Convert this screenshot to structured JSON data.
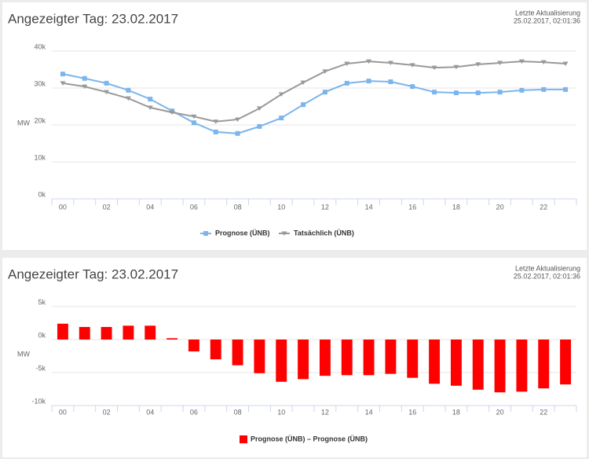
{
  "chart_data": [
    {
      "type": "line",
      "title": "Angezeigter Tag: 23.02.2017",
      "update_label": "Letzte Aktualisierung",
      "update_time": "25.02.2017, 02:01:36",
      "y_label": "MW",
      "categories": [
        "00",
        null,
        "02",
        null,
        "04",
        null,
        "06",
        null,
        "08",
        null,
        "10",
        null,
        "12",
        null,
        "14",
        null,
        "16",
        null,
        "18",
        null,
        "20",
        null,
        "22",
        null
      ],
      "series": [
        {
          "name": "Prognose (ÜNB)",
          "color": "#7cb5ec",
          "marker": "square",
          "values": [
            33800,
            32600,
            31300,
            29400,
            27000,
            23800,
            20600,
            18100,
            17700,
            19600,
            21900,
            25500,
            28900,
            31300,
            31900,
            31700,
            30400,
            28900,
            28700,
            28700,
            28900,
            29400,
            29600,
            29600
          ]
        },
        {
          "name": "Tatsächlich (ÜNB)",
          "color": "#999999",
          "marker": "triangle-down",
          "values": [
            31300,
            30400,
            28900,
            27200,
            24700,
            23400,
            22300,
            20900,
            21500,
            24500,
            28300,
            31500,
            34500,
            36600,
            37200,
            36800,
            36200,
            35500,
            35700,
            36400,
            36800,
            37200,
            37000,
            36600
          ]
        }
      ],
      "ylim": [
        0,
        40000
      ],
      "yticks": [
        {
          "value": 0,
          "label": "0k"
        },
        {
          "value": 10000,
          "label": "10k"
        },
        {
          "value": 20000,
          "label": "20k"
        },
        {
          "value": 30000,
          "label": "30k"
        },
        {
          "value": 40000,
          "label": "40k"
        }
      ],
      "grid": true
    },
    {
      "type": "bar",
      "title": "Angezeigter Tag: 23.02.2017",
      "update_label": "Letzte Aktualisierung",
      "update_time": "25.02.2017, 02:01:36",
      "y_label": "MW",
      "categories": [
        "00",
        null,
        "02",
        null,
        "04",
        null,
        "06",
        null,
        "08",
        null,
        "10",
        null,
        "12",
        null,
        "14",
        null,
        "16",
        null,
        "18",
        null,
        "20",
        null,
        "22",
        null
      ],
      "series": [
        {
          "name": "Prognose (ÜNB) – Prognose (ÜNB)",
          "color": "#ff0000",
          "values": [
            2400,
            1900,
            1900,
            2100,
            2100,
            200,
            -1800,
            -3000,
            -3900,
            -5100,
            -6400,
            -6000,
            -5500,
            -5400,
            -5400,
            -5200,
            -5800,
            -6700,
            -7000,
            -7600,
            -8000,
            -7900,
            -7400,
            -6800
          ]
        }
      ],
      "ylim": [
        -10000,
        5000
      ],
      "yticks": [
        {
          "value": -10000,
          "label": "-10k"
        },
        {
          "value": -5000,
          "label": "-5k"
        },
        {
          "value": 0,
          "label": "0k"
        },
        {
          "value": 5000,
          "label": "5k"
        }
      ],
      "grid": true
    }
  ]
}
